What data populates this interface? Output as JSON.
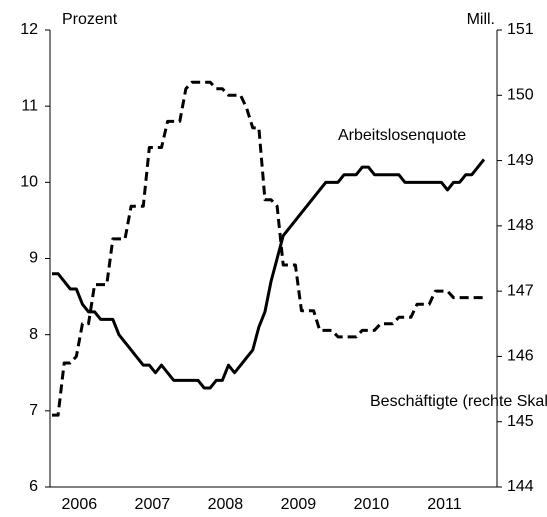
{
  "chart_data": {
    "type": "line",
    "ylabel": "Prozent",
    "y2label": "Mill.",
    "categories": [
      null,
      null,
      null,
      null,
      "2006",
      null,
      null,
      null,
      null,
      null,
      null,
      null,
      null,
      null,
      null,
      null,
      "2007",
      null,
      null,
      null,
      null,
      null,
      null,
      null,
      null,
      null,
      null,
      null,
      "2008",
      null,
      null,
      null,
      null,
      null,
      null,
      null,
      null,
      null,
      null,
      null,
      "2009",
      null,
      null,
      null,
      null,
      null,
      null,
      null,
      null,
      null,
      null,
      null,
      "2010",
      null,
      null,
      null,
      null,
      null,
      null,
      null,
      null,
      null,
      null,
      null,
      "2011",
      null,
      null,
      null,
      null,
      null,
      null,
      null
    ],
    "series": [
      {
        "name": "Arbeitslosenquote",
        "color": "#000000",
        "linestyle": "solid",
        "values": [
          8.8,
          8.8,
          8.7,
          8.6,
          8.6,
          8.4,
          8.3,
          8.3,
          8.2,
          8.2,
          8.2,
          8.0,
          7.9,
          7.8,
          7.7,
          7.6,
          7.6,
          7.5,
          7.6,
          7.5,
          7.4,
          7.4,
          7.4,
          7.4,
          7.4,
          7.3,
          7.3,
          7.4,
          7.4,
          7.6,
          7.5,
          7.6,
          7.7,
          7.8,
          8.1,
          8.3,
          8.7,
          9.0,
          9.3,
          9.4,
          9.5,
          9.6,
          9.7,
          9.8,
          9.9,
          10.0,
          10.0,
          10.0,
          10.1,
          10.1,
          10.1,
          10.2,
          10.2,
          10.1,
          10.1,
          10.1,
          10.1,
          10.1,
          10.0,
          10.0,
          10.0,
          10.0,
          10.0,
          10.0,
          10.0,
          9.9,
          10.0,
          10.0,
          10.1,
          10.1,
          10.2,
          10.3
        ]
      },
      {
        "name": "Beschäftigte (rechte Skala)",
        "color": "#000000",
        "linestyle": "dashed",
        "axis": "y2",
        "values": [
          145.1,
          145.1,
          145.9,
          145.9,
          146.0,
          146.5,
          146.5,
          147.1,
          147.1,
          147.1,
          147.8,
          147.8,
          147.8,
          148.3,
          148.3,
          148.3,
          149.2,
          149.2,
          149.2,
          149.6,
          149.6,
          149.6,
          150.1,
          150.2,
          150.2,
          150.2,
          150.2,
          150.1,
          150.1,
          150.0,
          150.0,
          150.0,
          149.8,
          149.5,
          149.5,
          148.4,
          148.4,
          148.3,
          147.4,
          147.4,
          147.4,
          146.7,
          146.7,
          146.7,
          146.4,
          146.4,
          146.4,
          146.3,
          146.3,
          146.3,
          146.3,
          146.4,
          146.4,
          146.4,
          146.5,
          146.5,
          146.5,
          146.6,
          146.6,
          146.6,
          146.8,
          146.8,
          146.8,
          147.0,
          147.0,
          147.0,
          146.9,
          146.9,
          146.9,
          146.9,
          146.9,
          146.9
        ]
      }
    ],
    "ylim": [
      6,
      12
    ],
    "yticks": [
      6,
      7,
      8,
      9,
      10,
      11,
      12
    ],
    "y2lim": [
      144,
      151
    ],
    "y2ticks": [
      144,
      145,
      146,
      147,
      148,
      149,
      150,
      151
    ],
    "grid": false
  }
}
